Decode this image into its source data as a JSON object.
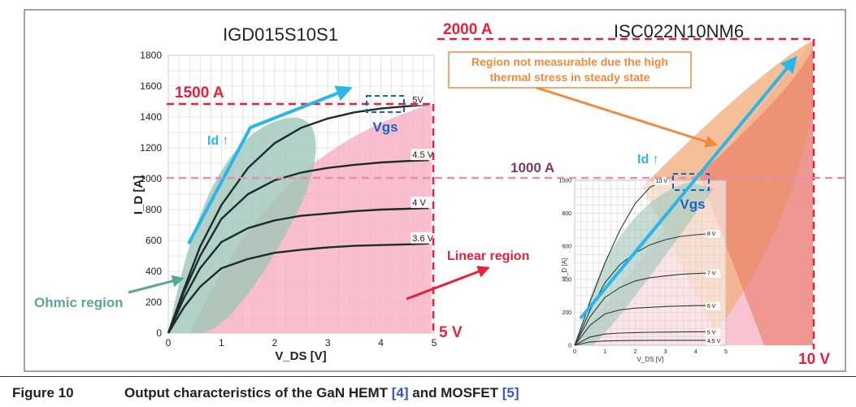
{
  "chart_data": [
    {
      "type": "line",
      "title": "IGD015S10S1",
      "xlabel": "V_DS [V]",
      "ylabel": "I_D [A]",
      "xlim": [
        0,
        5
      ],
      "ylim": [
        0,
        1800
      ],
      "xticks": [
        "0",
        "1",
        "2",
        "3",
        "4",
        "5"
      ],
      "yticks": [
        "0",
        "200",
        "400",
        "600",
        "800",
        "1000",
        "1200",
        "1400",
        "1600",
        "1800"
      ],
      "series": [
        {
          "name": "5V",
          "x": [
            0,
            0.3,
            0.6,
            1.0,
            1.5,
            2.0,
            2.5,
            3.0,
            3.5,
            4.0,
            4.5,
            4.9
          ],
          "y": [
            0,
            290,
            560,
            830,
            1070,
            1230,
            1330,
            1390,
            1430,
            1455,
            1470,
            1480
          ]
        },
        {
          "name": "4.5 V",
          "x": [
            0,
            0.3,
            0.6,
            1.0,
            1.5,
            2.0,
            2.5,
            3.0,
            3.5,
            4.0,
            4.5,
            4.9
          ],
          "y": [
            0,
            270,
            500,
            740,
            900,
            990,
            1040,
            1070,
            1090,
            1105,
            1115,
            1120
          ]
        },
        {
          "name": "4 V",
          "x": [
            0,
            0.3,
            0.6,
            1.0,
            1.5,
            2.0,
            2.5,
            3.0,
            3.5,
            4.0,
            4.5,
            4.9
          ],
          "y": [
            0,
            230,
            420,
            590,
            680,
            730,
            760,
            775,
            790,
            800,
            805,
            810
          ]
        },
        {
          "name": "3.6 V",
          "x": [
            0,
            0.3,
            0.6,
            1.0,
            1.5,
            2.0,
            2.5,
            3.0,
            3.5,
            4.0,
            4.5,
            4.9
          ],
          "y": [
            0,
            170,
            300,
            420,
            480,
            520,
            540,
            555,
            565,
            570,
            575,
            580
          ]
        }
      ],
      "annotations": {
        "limit_current": "1500 A",
        "limit_voltage": "5 V",
        "gate_label": "Vgs",
        "arrow_label": "Id ↑",
        "ohmic": "Ohmic region"
      }
    },
    {
      "type": "line",
      "title": "ISC022N10NM6",
      "xlabel": "V_DS [V]",
      "ylabel": "I_D [A]",
      "xlim": [
        0,
        5
      ],
      "ylim": [
        0,
        1000
      ],
      "xticks": [
        "0",
        "1",
        "2",
        "3",
        "4",
        "5"
      ],
      "yticks": [
        "0",
        "200",
        "400",
        "600",
        "800",
        "1000"
      ],
      "series": [
        {
          "name": "10 V",
          "x": [
            0,
            0.5,
            1,
            1.5,
            2,
            2.5,
            3
          ],
          "y": [
            0,
            260,
            500,
            700,
            860,
            960,
            1000
          ]
        },
        {
          "name": "8 V",
          "x": [
            0,
            0.5,
            1,
            1.5,
            2,
            2.5,
            3,
            3.5,
            4,
            4.7
          ],
          "y": [
            0,
            210,
            380,
            490,
            560,
            610,
            640,
            660,
            670,
            680
          ]
        },
        {
          "name": "7 V",
          "x": [
            0,
            0.5,
            1,
            1.5,
            2,
            2.5,
            3,
            3.5,
            4,
            4.7
          ],
          "y": [
            0,
            170,
            290,
            350,
            390,
            410,
            420,
            430,
            435,
            440
          ]
        },
        {
          "name": "6 V",
          "x": [
            0,
            0.5,
            1,
            1.5,
            2,
            2.5,
            3,
            3.5,
            4,
            4.7
          ],
          "y": [
            0,
            120,
            190,
            215,
            225,
            230,
            235,
            238,
            240,
            242
          ]
        },
        {
          "name": "5 V",
          "x": [
            0,
            0.5,
            1,
            1.5,
            2,
            2.5,
            3,
            3.5,
            4,
            4.7
          ],
          "y": [
            0,
            50,
            68,
            74,
            77,
            79,
            80,
            81,
            82,
            82
          ]
        },
        {
          "name": "4.5 V",
          "x": [
            0,
            0.5,
            1,
            1.5,
            2,
            2.5,
            3,
            3.5,
            4,
            4.7
          ],
          "y": [
            0,
            20,
            26,
            28,
            29,
            30,
            30,
            30,
            30,
            30
          ]
        }
      ],
      "annotations": {
        "limit_current": "2000 A",
        "mid_current": "1000 A",
        "limit_voltage": "10 V",
        "gate_label": "Vgs",
        "arrow_label": "Id ↑",
        "not_measurable_line1": "Region not measurable due the high",
        "not_measurable_line2": "thermal stress in steady state"
      }
    }
  ],
  "shared": {
    "linear_region": "Linear region"
  },
  "caption": {
    "number": "Figure 10",
    "text_before": "Output characteristics of the GaN HEMT ",
    "ref1": "[4]",
    "text_mid": " and MOSFET ",
    "ref2": "[5]"
  },
  "colors": {
    "red": "#e8203a",
    "pink": "#f7b8c8",
    "teal": "#5aa69a",
    "cyan": "#29b6e8",
    "orange": "#f08a3c",
    "purple": "#7a3a6e",
    "blue": "#1565c0"
  }
}
